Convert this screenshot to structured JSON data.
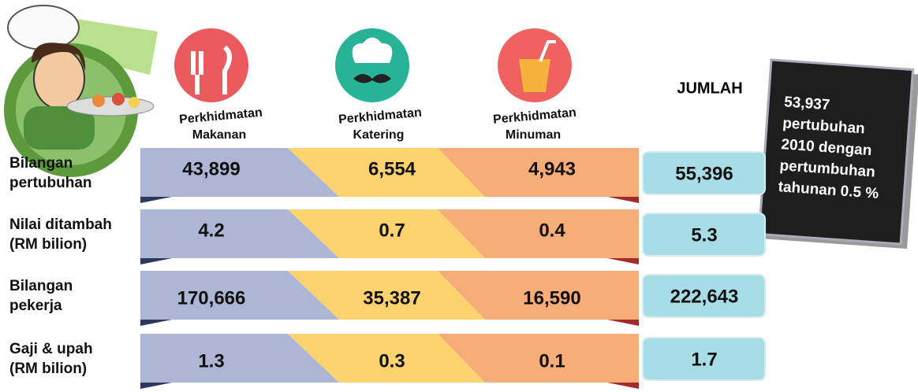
{
  "columns": [
    {
      "line1": "Perkhidmatan",
      "line2": "Makanan"
    },
    {
      "line1": "Perkhidmatan",
      "line2": "Katering"
    },
    {
      "line1": "Perkhidmatan",
      "line2": "Minuman"
    }
  ],
  "total_header": "JUMLAH",
  "rows": [
    {
      "label": [
        "Bilangan",
        "pertubuhan"
      ],
      "values": [
        "43,899",
        "6,554",
        "4,943"
      ],
      "total": "55,396"
    },
    {
      "label": [
        "Nilai ditambah",
        "(RM bilion)"
      ],
      "values": [
        "4.2",
        "0.7",
        "0.4"
      ],
      "total": "5.3"
    },
    {
      "label": [
        "Bilangan",
        "pekerja"
      ],
      "values": [
        "170,666",
        "35,387",
        "16,590"
      ],
      "total": "222,643"
    },
    {
      "label": [
        "Gaji & upah",
        "(RM bilion)"
      ],
      "values": [
        "1.3",
        "0.3",
        "0.1"
      ],
      "total": "1.7"
    }
  ],
  "note": [
    "53,937",
    "pertubuhan",
    "2010  dengan",
    "pertumbuhan",
    "tahunan 0.5 %"
  ]
}
